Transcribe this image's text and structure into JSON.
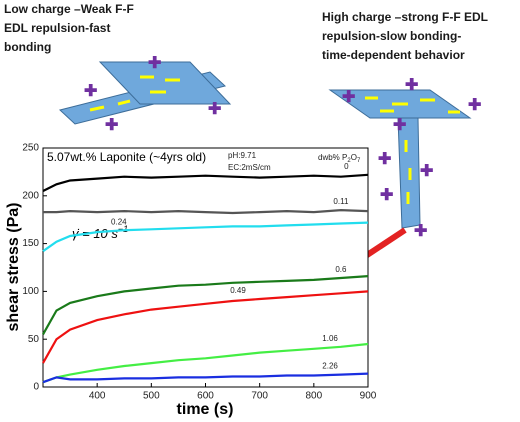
{
  "chart_data": {
    "type": "line",
    "annotations": {
      "low_charge": [
        "Low charge –Weak F-F",
        "EDL repulsion-fast",
        "bonding"
      ],
      "high_charge": [
        "High charge –strong F-F EDL",
        "repulsion-slow bonding-",
        "time-dependent behavior"
      ]
    },
    "sample": "5.07wt.% Laponite (~4yrs old)",
    "ph": "pH:9.71",
    "ec": "EC:2mS/cm",
    "legend_title": [
      "dwb% P",
      "2",
      "O",
      "7"
    ],
    "shear_rate": {
      "text": "γ̇ = 10 s",
      "exponent": "−1"
    },
    "x_label": "time (s)",
    "y_label": "shear stress (Pa)",
    "x": [
      300,
      325,
      350,
      400,
      450,
      500,
      550,
      600,
      650,
      700,
      750,
      800,
      850,
      900
    ],
    "series": [
      {
        "name": "0",
        "color": "#000000",
        "values": [
          205,
          212,
          216,
          218,
          220,
          219,
          220,
          221,
          220,
          219,
          220,
          221,
          220,
          222
        ]
      },
      {
        "name": "0.11",
        "color": "#555555",
        "values": [
          183,
          183,
          184,
          183,
          184,
          183,
          184,
          183,
          182,
          183,
          184,
          183,
          185,
          184
        ]
      },
      {
        "name": "0.24",
        "color": "#22ddee",
        "values": [
          142,
          152,
          158,
          162,
          164,
          165,
          166,
          167,
          168,
          168,
          169,
          170,
          171,
          172
        ]
      },
      {
        "name": "0.6",
        "color": "#1a7a1a",
        "values": [
          55,
          80,
          88,
          95,
          100,
          103,
          106,
          107,
          109,
          110,
          111,
          112,
          114,
          116
        ]
      },
      {
        "name": "0.49",
        "color": "#ee1111",
        "values": [
          25,
          50,
          60,
          70,
          76,
          81,
          84,
          87,
          90,
          92,
          94,
          96,
          98,
          100
        ]
      },
      {
        "name": "1.06",
        "color": "#44ee44",
        "values": [
          5,
          10,
          13,
          18,
          22,
          25,
          28,
          30,
          33,
          36,
          38,
          40,
          42,
          45
        ]
      },
      {
        "name": "2.26",
        "color": "#1a2ee0",
        "values": [
          5,
          10,
          8,
          8,
          9,
          9,
          10,
          10,
          11,
          11,
          12,
          12,
          13,
          14
        ]
      }
    ],
    "xlim": [
      300,
      900
    ],
    "ylim": [
      0,
      250
    ],
    "xticks": [
      400,
      500,
      600,
      700,
      800,
      900
    ],
    "yticks": [
      0,
      50,
      100,
      150,
      200,
      250
    ]
  }
}
